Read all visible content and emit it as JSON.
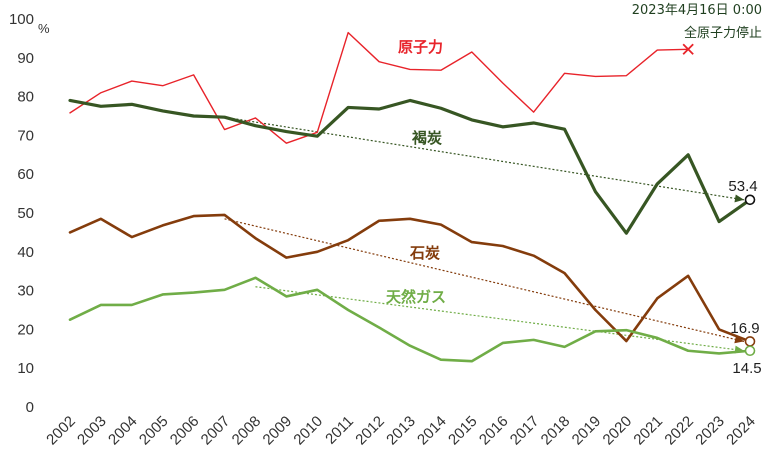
{
  "chart_data": {
    "type": "line",
    "title": "",
    "xlabel": "",
    "ylabel": "",
    "y_unit": "%",
    "ylim": [
      0,
      100
    ],
    "yticks": [
      0,
      10,
      20,
      30,
      40,
      50,
      60,
      70,
      80,
      90,
      100
    ],
    "grid": false,
    "categories": [
      "2002",
      "2003",
      "2004",
      "2005",
      "2006",
      "2007",
      "2008",
      "2009",
      "2010",
      "2011",
      "2012",
      "2013",
      "2014",
      "2015",
      "2016",
      "2017",
      "2018",
      "2019",
      "2020",
      "2021",
      "2022",
      "2023",
      "2024"
    ],
    "series": [
      {
        "name": "原子力",
        "color": "#e8232a",
        "values": [
          75.8,
          81.0,
          84.0,
          82.8,
          85.6,
          71.5,
          74.5,
          68.0,
          70.8,
          96.5,
          89.0,
          87.0,
          86.8,
          91.5,
          83.5,
          76.0,
          86.0,
          85.2,
          85.4,
          92.0,
          92.2,
          null,
          null
        ],
        "end_marker": "cross"
      },
      {
        "name": "褐炭",
        "color": "#375623",
        "values": [
          79.0,
          77.5,
          78.0,
          76.3,
          75.0,
          74.7,
          72.5,
          71.0,
          69.8,
          77.2,
          76.8,
          79.0,
          77.0,
          74.0,
          72.2,
          73.2,
          71.6,
          55.5,
          44.8,
          57.5,
          65.0,
          47.8,
          53.4
        ],
        "trend": [
          74.7,
          53.4
        ],
        "trend_from": "2007",
        "end_label": "53.4"
      },
      {
        "name": "石炭",
        "color": "#843c0c",
        "values": [
          45.0,
          48.5,
          43.8,
          46.8,
          49.2,
          49.5,
          43.5,
          38.5,
          40.0,
          43.0,
          48.0,
          48.5,
          47.0,
          42.5,
          41.5,
          39.0,
          34.5,
          25.0,
          17.0,
          28.0,
          33.8,
          20.0,
          16.9
        ],
        "trend": [
          48.5,
          16.9
        ],
        "trend_from": "2007",
        "end_label": "16.9"
      },
      {
        "name": "天然ガス",
        "color": "#70ad47",
        "values": [
          22.5,
          26.3,
          26.3,
          29.0,
          29.5,
          30.2,
          33.3,
          28.5,
          30.2,
          25.0,
          20.5,
          15.8,
          12.2,
          11.8,
          16.5,
          17.3,
          15.5,
          19.5,
          19.8,
          17.8,
          14.5,
          13.8,
          14.5
        ],
        "trend": [
          31.0,
          14.5
        ],
        "trend_from": "2008",
        "end_label": "14.5"
      }
    ],
    "annotations": {
      "date": "2023年4月16日 0:00",
      "event": "全原子力停止"
    }
  }
}
